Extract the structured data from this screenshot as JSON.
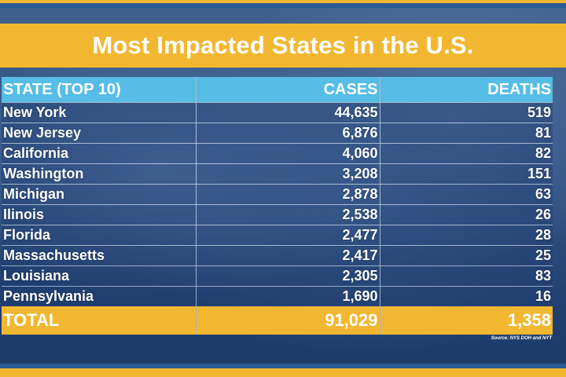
{
  "title": "Most Impacted States in the U.S.",
  "table": {
    "headers": [
      "STATE (TOP 10)",
      "CASES",
      "DEATHS"
    ],
    "rows": [
      [
        "New York",
        "44,635",
        "519"
      ],
      [
        "New Jersey",
        "6,876",
        "81"
      ],
      [
        "California",
        "4,060",
        "82"
      ],
      [
        "Washington",
        "3,208",
        "151"
      ],
      [
        "Michigan",
        "2,878",
        "63"
      ],
      [
        "Ilinois",
        "2,538",
        "26"
      ],
      [
        "Florida",
        "2,477",
        "28"
      ],
      [
        "Massachusetts",
        "2,417",
        "25"
      ],
      [
        "Louisiana",
        "2,305",
        "83"
      ],
      [
        "Pennsylvania",
        "1,690",
        "16"
      ]
    ],
    "total": [
      "TOTAL",
      "91,029",
      "1,358"
    ]
  },
  "source": "Source: NYS DOH and NYT",
  "colors": {
    "gold": "#f2b731",
    "header_blue": "#55bde6",
    "background_blue": "#1d3a66",
    "text": "#ffffff"
  }
}
